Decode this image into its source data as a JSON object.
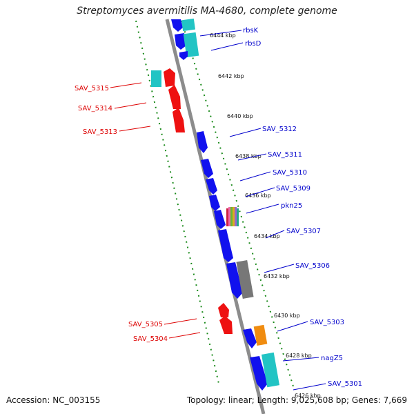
{
  "title": "Streptomyces avermitilis MA-4680, complete genome",
  "footer": {
    "accession": "Accession: NC_003155",
    "summary": "Topology: linear; Length: 9,025,608 bp; Genes: 7,669"
  },
  "colors": {
    "backbone": "#8c8c8c",
    "dotted": "#1a8a1a",
    "forward_gene": "#ee1111",
    "reverse_gene": "#1111ee",
    "label_red": "#dd0000",
    "label_blue": "#0000cc",
    "cyan": "#22c4c4",
    "gray": "#777777",
    "orange": "#f08c10"
  },
  "tick_labels": [
    "6444 kbp",
    "6442 kbp",
    "6440 kbp",
    "6438 kbp",
    "6436 kbp",
    "6434 kbp",
    "6432 kbp",
    "6430 kbp",
    "6428 kbp",
    "6426 kbp"
  ],
  "genes_right": [
    {
      "name": "rbsK"
    },
    {
      "name": "rbsD"
    },
    {
      "name": "SAV_5312"
    },
    {
      "name": "SAV_5311"
    },
    {
      "name": "SAV_5310"
    },
    {
      "name": "SAV_5309"
    },
    {
      "name": "pkn25"
    },
    {
      "name": "SAV_5307"
    },
    {
      "name": "SAV_5306"
    },
    {
      "name": "SAV_5303"
    },
    {
      "name": "nagZ5"
    },
    {
      "name": "SAV_5301"
    }
  ],
  "genes_left": [
    {
      "name": "SAV_5315"
    },
    {
      "name": "SAV_5314"
    },
    {
      "name": "SAV_5313"
    },
    {
      "name": "SAV_5305"
    },
    {
      "name": "SAV_5304"
    }
  ]
}
